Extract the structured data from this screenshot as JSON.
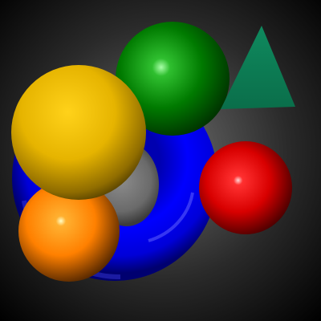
{
  "scene": {
    "background": {
      "center_color": "#6e6e6e",
      "edge_color": "#000000"
    },
    "objects": [
      {
        "name": "blue-torus",
        "shape": "torus",
        "color": "#0000ff"
      },
      {
        "name": "green-sphere",
        "shape": "sphere",
        "color": "#008000"
      },
      {
        "name": "green-triangle",
        "shape": "triangle",
        "color": "#0c7a55"
      },
      {
        "name": "yellow-sphere",
        "shape": "sphere",
        "color": "#e6b400"
      },
      {
        "name": "red-sphere",
        "shape": "sphere",
        "color": "#e00000"
      },
      {
        "name": "orange-sphere",
        "shape": "sphere",
        "color": "#ff8000"
      }
    ]
  }
}
